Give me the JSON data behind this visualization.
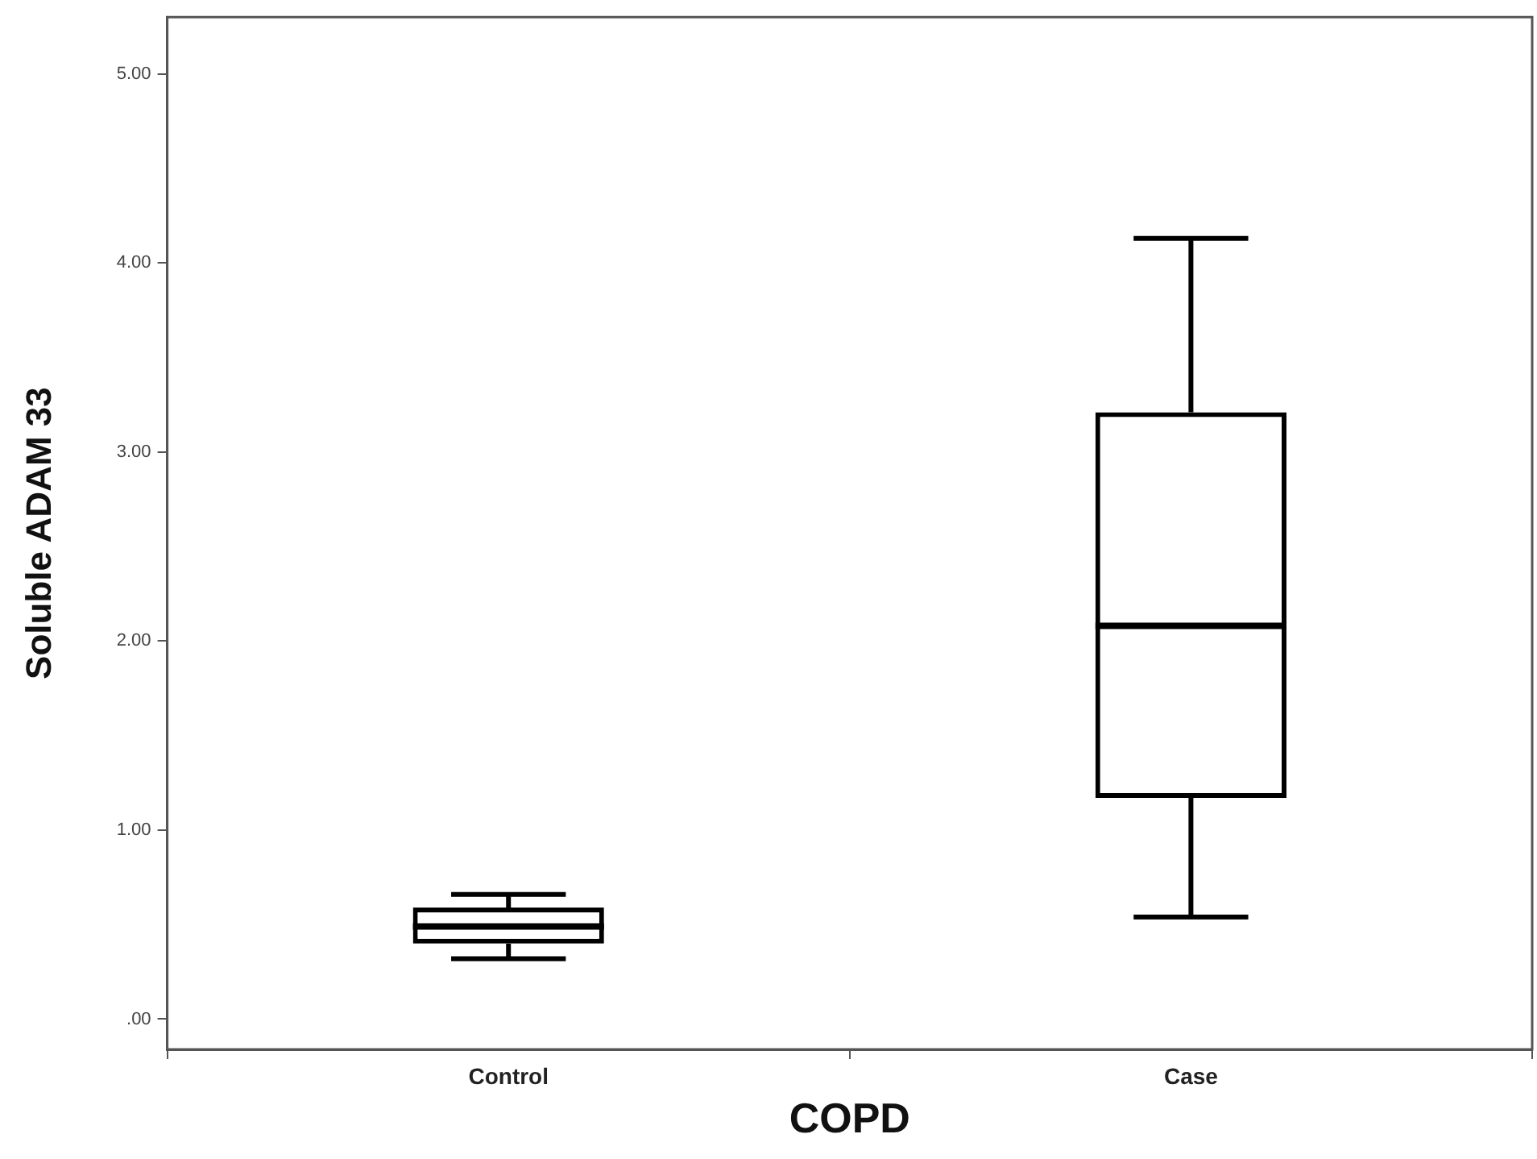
{
  "chart_data": {
    "type": "box",
    "xlabel": "COPD",
    "ylabel": "Soluble ADAM 33",
    "categories": [
      "Control",
      "Case"
    ],
    "boxes": [
      {
        "low": 0.32,
        "q1": 0.4,
        "median": 0.49,
        "q3": 0.59,
        "high": 0.66
      },
      {
        "low": 0.54,
        "q1": 1.17,
        "median": 2.08,
        "q3": 3.21,
        "high": 4.13
      }
    ],
    "ylim": [
      -0.16,
      5.3
    ],
    "yticks": [
      {
        "value": 0,
        "label": ".00"
      },
      {
        "value": 1,
        "label": "1.00"
      },
      {
        "value": 2,
        "label": "2.00"
      },
      {
        "value": 3,
        "label": "3.00"
      },
      {
        "value": 4,
        "label": "4.00"
      },
      {
        "value": 5,
        "label": "5.00"
      }
    ]
  }
}
